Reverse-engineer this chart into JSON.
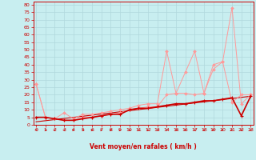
{
  "xlabel": "Vent moyen/en rafales ( km/h )",
  "background_color": "#c8eef0",
  "grid_color": "#b0d8dc",
  "x_ticks": [
    0,
    1,
    2,
    3,
    4,
    5,
    6,
    7,
    8,
    9,
    10,
    11,
    12,
    13,
    14,
    15,
    16,
    17,
    18,
    19,
    20,
    21,
    22,
    23
  ],
  "y_ticks": [
    0,
    5,
    10,
    15,
    20,
    25,
    30,
    35,
    40,
    45,
    50,
    55,
    60,
    65,
    70,
    75,
    80
  ],
  "ylim": [
    0,
    82
  ],
  "xlim": [
    -0.3,
    23.3
  ],
  "line_pink1_x": [
    0,
    1,
    2,
    3,
    4,
    5,
    6,
    7,
    8,
    9,
    10,
    11,
    12,
    13,
    14,
    15,
    16,
    17,
    18,
    19,
    20,
    21,
    22,
    23
  ],
  "line_pink1_y": [
    27,
    5,
    4,
    3,
    3,
    5,
    5,
    6,
    7,
    8,
    10,
    11,
    12,
    12,
    20,
    21,
    21,
    20,
    21,
    37,
    42,
    15,
    20,
    20
  ],
  "line_pink2_x": [
    0,
    1,
    2,
    3,
    4,
    5,
    6,
    7,
    8,
    9,
    10,
    11,
    12,
    13,
    14,
    15,
    16,
    17,
    18,
    19,
    20,
    21,
    22,
    23
  ],
  "line_pink2_y": [
    27,
    5,
    4,
    8,
    4,
    7,
    7,
    8,
    9,
    10,
    11,
    13,
    14,
    14,
    49,
    21,
    35,
    49,
    21,
    40,
    42,
    78,
    14,
    20
  ],
  "line_dark_x": [
    0,
    1,
    2,
    3,
    4,
    5,
    6,
    7,
    8,
    9,
    10,
    11,
    12,
    13,
    14,
    15,
    16,
    17,
    18,
    19,
    20,
    21,
    22,
    23
  ],
  "line_dark_y": [
    5,
    5,
    4,
    3,
    3,
    4,
    5,
    6,
    7,
    7,
    10,
    11,
    11,
    12,
    13,
    14,
    14,
    15,
    16,
    16,
    17,
    18,
    6,
    19
  ],
  "trend_x": [
    0,
    23
  ],
  "trend_y": [
    2,
    19
  ],
  "pink_color": "#ff9999",
  "dark_color": "#cc0000",
  "arrow_angles_deg": [
    225,
    90,
    270,
    315,
    45,
    90,
    45,
    45,
    45,
    45,
    90,
    45,
    45,
    90,
    90,
    90,
    315,
    315,
    315,
    270,
    270,
    270,
    315,
    315
  ]
}
